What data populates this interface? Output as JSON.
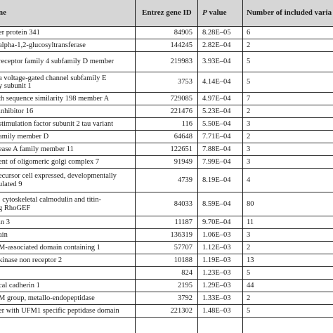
{
  "header": {
    "gene_name": "ne",
    "entrez_id": "Entrez gene ID",
    "p_italic": "P",
    "p_rest": " value",
    "n_variants": "Number of included varia"
  },
  "rows": [
    {
      "name": "er protein 341",
      "id": "84905",
      "p": "8.28E–05",
      "n": "6"
    },
    {
      "name": "alpha-1,2-glucosyltransferase",
      "id": "144245",
      "p": "2.82E–04",
      "n": "2"
    },
    {
      "name": " receptor family 4 subfamily D member",
      "id": "219983",
      "p": "3.93E–04",
      "n": "5"
    },
    {
      "name": "a voltage-gated channel subfamily E\ny subunit 1",
      "id": "3753",
      "p": "4.14E–04",
      "n": "5"
    },
    {
      "name": "th sequence similarity 198 member A",
      "id": "729085",
      "p": "4.97E–04",
      "n": "7"
    },
    {
      "name": " inhibitor 16",
      "id": "221476",
      "p": "5.23E–04",
      "n": "2"
    },
    {
      "name": "stimulation factor subunit 2 tau variant",
      "id": "116",
      "p": "5.50E–04",
      "n": "3"
    },
    {
      "name": "amily member D",
      "id": "64648",
      "p": "7.71E–04",
      "n": "2"
    },
    {
      "name": "ease A family member 11",
      "id": "122651",
      "p": "7.88E–04",
      "n": "3"
    },
    {
      "name": "ent of oligomeric golgi complex 7",
      "id": "91949",
      "p": "7.99E–04",
      "n": "3"
    },
    {
      "name": "ecursor cell expressed, developmentally\nulated 9",
      "id": "4739",
      "p": "8.19E–04",
      "n": "4"
    },
    {
      "name": ", cytoskeletal calmodulin and titin-\ng RhoGEF",
      "id": "84033",
      "p": "8.59E–04",
      "n": "80"
    },
    {
      "name": "in 3",
      "id": "11187",
      "p": "9.70E–04",
      "n": "11"
    },
    {
      "name": "ain",
      "id": "136319",
      "p": "1.06E–03",
      "n": "3"
    },
    {
      "name": "M-associated domain containing 1",
      "id": "57707",
      "p": "1.12E–03",
      "n": "2"
    },
    {
      "name": "kinase non receptor 2",
      "id": "10188",
      "p": "1.19E–03",
      "n": "13"
    },
    {
      "name": "",
      "id": "824",
      "p": "1.23E–03",
      "n": "5"
    },
    {
      "name": "cal cadherin 1",
      "id": "2195",
      "p": "1.29E–03",
      "n": "44"
    },
    {
      "name": "M group, metallo-endopeptidase",
      "id": "3792",
      "p": "1.33E–03",
      "n": "2"
    },
    {
      "name": "er with UFM1 specific peptidase domain",
      "id": "221302",
      "p": "1.48E–03",
      "n": "5"
    }
  ]
}
